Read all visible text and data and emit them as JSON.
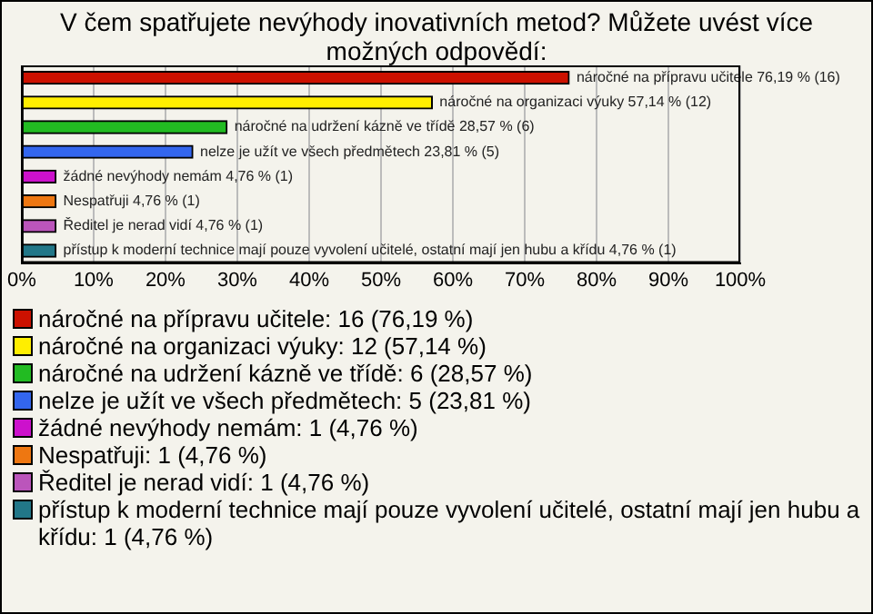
{
  "chart_data": {
    "type": "bar",
    "orientation": "horizontal",
    "title": "V čem spatřujete nevýhody inovativních metod? Můžete uvést více možných odpovědí:",
    "categories": [
      null,
      null,
      null,
      null,
      null,
      null,
      null,
      null
    ],
    "series": [
      {
        "name": "náročné na přípravu učitele: 16 (76,19 %)",
        "color": "#cc1100",
        "values": [
          76.19,
          null,
          null,
          null,
          null,
          null,
          null,
          null
        ],
        "value_labels": [
          "náročné na přípravu učitele 76,19 % (16)",
          null,
          null,
          null,
          null,
          null,
          null,
          null
        ]
      },
      {
        "name": "náročné na organizaci výuky: 12 (57,14 %)",
        "color": "#ffee00",
        "values": [
          null,
          57.14,
          null,
          null,
          null,
          null,
          null,
          null
        ],
        "value_labels": [
          null,
          "náročné na organizaci výuky 57,14 % (12)",
          null,
          null,
          null,
          null,
          null,
          null
        ]
      },
      {
        "name": "náročné na udržení kázně ve třídě: 6 (28,57 %)",
        "color": "#22bb22",
        "values": [
          null,
          null,
          28.57,
          null,
          null,
          null,
          null,
          null
        ],
        "value_labels": [
          null,
          null,
          "náročné na udržení kázně ve třídě 28,57 % (6)",
          null,
          null,
          null,
          null,
          null
        ]
      },
      {
        "name": "nelze je užít ve všech předmětech: 5 (23,81 %)",
        "color": "#3366ee",
        "values": [
          null,
          null,
          null,
          23.81,
          null,
          null,
          null,
          null
        ],
        "value_labels": [
          null,
          null,
          null,
          "nelze je užít ve všech předmětech 23,81 % (5)",
          null,
          null,
          null,
          null
        ]
      },
      {
        "name": "žádné nevýhody nemám: 1 (4,76 %)",
        "color": "#cc11cc",
        "values": [
          null,
          null,
          null,
          null,
          4.76,
          null,
          null,
          null
        ],
        "value_labels": [
          null,
          null,
          null,
          null,
          "žádné nevýhody nemám 4,76 % (1)",
          null,
          null,
          null
        ]
      },
      {
        "name": "Nespatřuji: 1 (4,76 %)",
        "color": "#ee7711",
        "values": [
          null,
          null,
          null,
          null,
          null,
          4.76,
          null,
          null
        ],
        "value_labels": [
          null,
          null,
          null,
          null,
          null,
          "Nespatřuji 4,76 % (1)",
          null,
          null
        ]
      },
      {
        "name": "Ředitel je nerad vidí: 1 (4,76 %)",
        "color": "#bb55bb",
        "values": [
          null,
          null,
          null,
          null,
          null,
          null,
          4.76,
          null
        ],
        "value_labels": [
          null,
          null,
          null,
          null,
          null,
          null,
          "Ředitel je nerad vidí 4,76 % (1)",
          null
        ]
      },
      {
        "name": "přístup k moderní technice mají pouze vyvolení učitelé, ostatní mají jen hubu a křídu: 1 (4,76 %)",
        "color": "#227788",
        "values": [
          null,
          null,
          null,
          null,
          null,
          null,
          null,
          4.76
        ],
        "value_labels": [
          null,
          null,
          null,
          null,
          null,
          null,
          null,
          "přístup k moderní technice mají pouze vyvolení učitelé, ostatní mají jen hubu a křídu 4,76 % (1)"
        ]
      }
    ],
    "xlim": [
      0,
      100
    ],
    "xticks": [
      {
        "value": 0,
        "label": "0%"
      },
      {
        "value": 10,
        "label": "10%"
      },
      {
        "value": 20,
        "label": "20%"
      },
      {
        "value": 30,
        "label": "30%"
      },
      {
        "value": 40,
        "label": "40%"
      },
      {
        "value": 50,
        "label": "50%"
      },
      {
        "value": 60,
        "label": "60%"
      },
      {
        "value": 70,
        "label": "70%"
      },
      {
        "value": 80,
        "label": "80%"
      },
      {
        "value": 90,
        "label": "90%"
      },
      {
        "value": 100,
        "label": "100%"
      }
    ],
    "grid": "x",
    "legend": "bottom"
  }
}
